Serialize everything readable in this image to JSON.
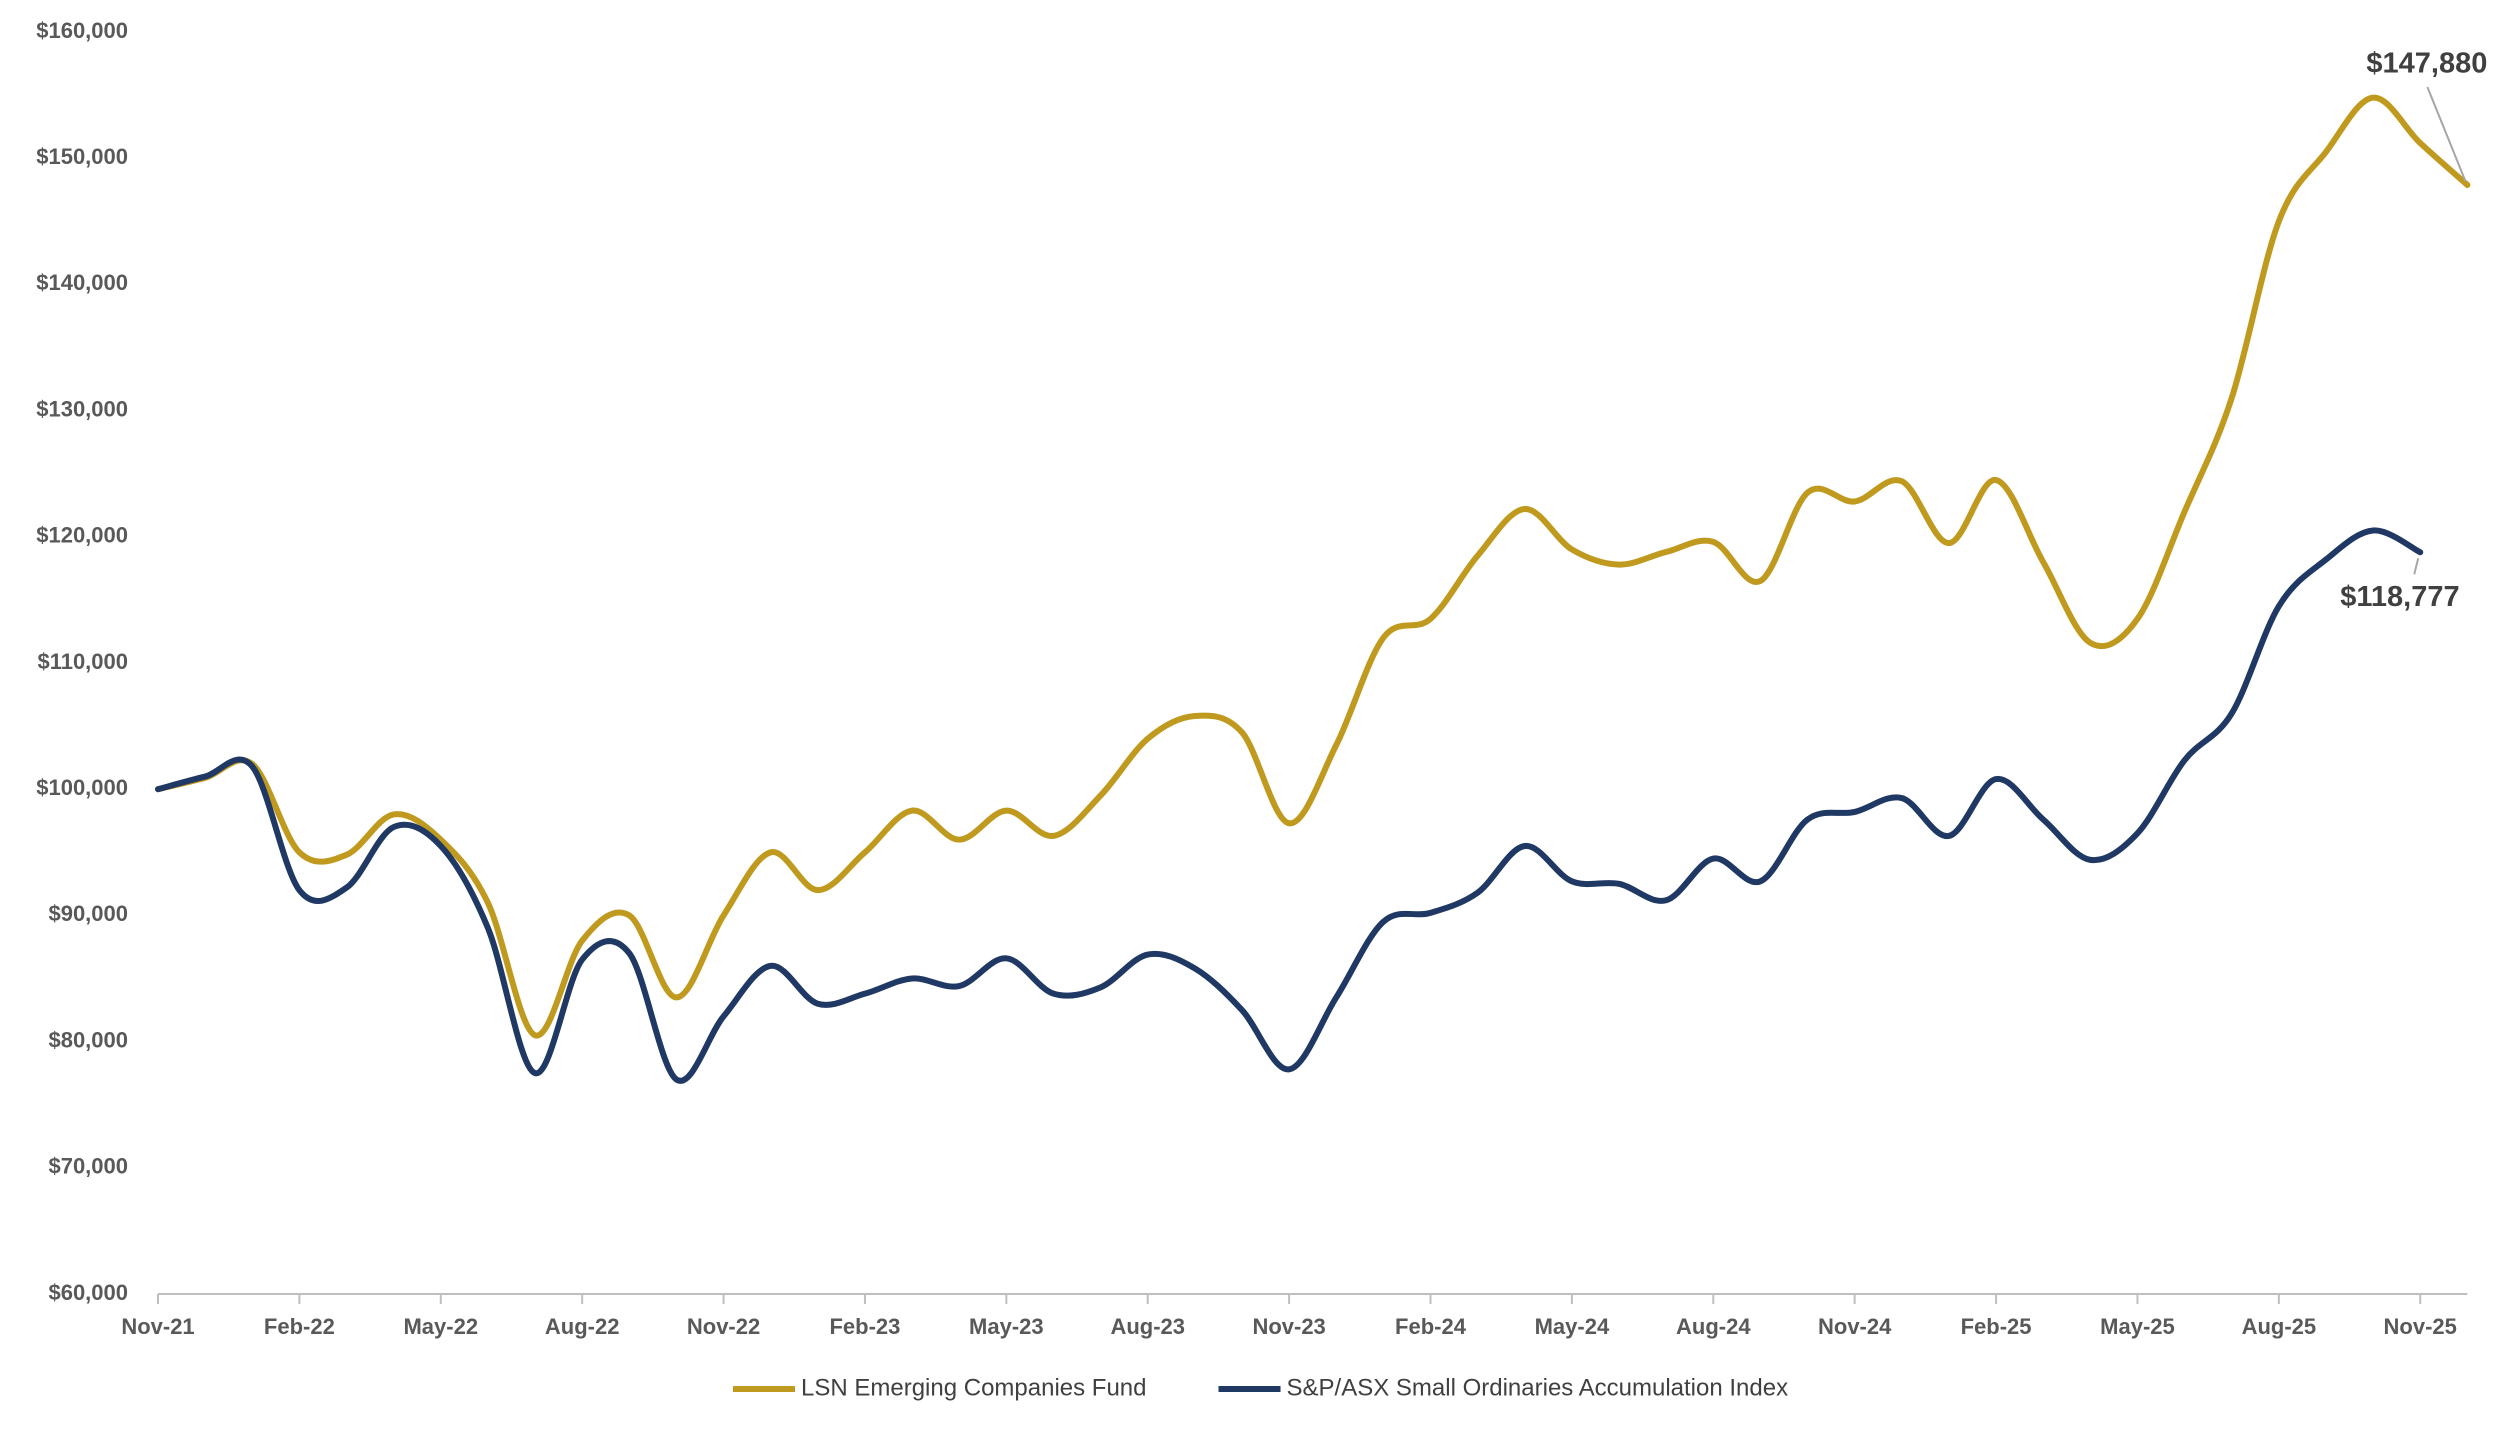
{
  "chart_data": {
    "type": "line",
    "categories": [
      "Nov-21",
      null,
      null,
      "Feb-22",
      null,
      null,
      "May-22",
      null,
      null,
      "Aug-22",
      null,
      null,
      "Nov-22",
      null,
      null,
      "Feb-23",
      null,
      null,
      "May-23",
      null,
      null,
      "Aug-23",
      null,
      null,
      "Nov-23",
      null,
      null,
      "Feb-24",
      null,
      null,
      "May-24",
      null,
      null,
      "Aug-24",
      null,
      null,
      "Nov-24",
      null,
      null,
      "Feb-25",
      null,
      null,
      "May-25",
      null,
      null,
      "Aug-25",
      null,
      null,
      "Nov-25",
      null
    ],
    "series": [
      {
        "name": "LSN Emerging Companies Fund",
        "color": "#C09A1E",
        "values": [
          100000,
          100900,
          102000,
          95000,
          94800,
          98000,
          96000,
          91000,
          80500,
          88000,
          90000,
          83500,
          90000,
          95000,
          92000,
          95000,
          98300,
          96000,
          98300,
          96300,
          99500,
          104000,
          105800,
          104500,
          97300,
          103500,
          112000,
          113500,
          118500,
          122200,
          119000,
          117800,
          118800,
          119600,
          116500,
          123500,
          122800,
          124400,
          119500,
          124500,
          118000,
          111600,
          113500,
          122000,
          131000,
          145000,
          150500,
          154800,
          151200,
          147880
        ],
        "value_labels": [
          null,
          null,
          null,
          null,
          null,
          null,
          null,
          null,
          null,
          null,
          null,
          null,
          null,
          null,
          null,
          null,
          null,
          null,
          null,
          null,
          null,
          null,
          null,
          null,
          null,
          null,
          null,
          null,
          null,
          null,
          null,
          null,
          null,
          null,
          null,
          null,
          null,
          null,
          null,
          null,
          null,
          null,
          null,
          null,
          null,
          null,
          null,
          null,
          null,
          "$147,880"
        ]
      },
      {
        "name": "S&P/ASX Small Ordinaries Accumulation Index",
        "color": "#1F3864",
        "values": [
          100000,
          101000,
          101800,
          92000,
          92200,
          97000,
          95500,
          89000,
          77500,
          86500,
          87000,
          77000,
          82000,
          86000,
          83000,
          83800,
          85000,
          84400,
          86600,
          83800,
          84300,
          86900,
          85800,
          82500,
          77800,
          83500,
          89500,
          90200,
          91800,
          95500,
          92700,
          92500,
          91200,
          94500,
          92700,
          97600,
          98200,
          99300,
          96300,
          100800,
          97600,
          94400,
          96500,
          102300,
          106000,
          114500,
          118200,
          120500,
          118777,
          null
        ],
        "value_labels": [
          null,
          null,
          null,
          null,
          null,
          null,
          null,
          null,
          null,
          null,
          null,
          null,
          null,
          null,
          null,
          null,
          null,
          null,
          null,
          null,
          null,
          null,
          null,
          null,
          null,
          null,
          null,
          null,
          null,
          null,
          null,
          null,
          null,
          null,
          null,
          null,
          null,
          null,
          null,
          null,
          null,
          null,
          null,
          null,
          null,
          null,
          null,
          null,
          "$118,777",
          null
        ]
      }
    ],
    "ylim": [
      60000,
      160000
    ],
    "yticks": [
      {
        "value": 60000,
        "label": "$60,000"
      },
      {
        "value": 70000,
        "label": "$70,000"
      },
      {
        "value": 80000,
        "label": "$80,000"
      },
      {
        "value": 90000,
        "label": "$90,000"
      },
      {
        "value": 100000,
        "label": "$100,000"
      },
      {
        "value": 110000,
        "label": "$110,000"
      },
      {
        "value": 120000,
        "label": "$120,000"
      },
      {
        "value": 130000,
        "label": "$130,000"
      },
      {
        "value": 140000,
        "label": "$140,000"
      },
      {
        "value": 150000,
        "label": "$150,000"
      },
      {
        "value": 160000,
        "label": "$160,000"
      }
    ],
    "grid": false,
    "legend": "bottom"
  }
}
